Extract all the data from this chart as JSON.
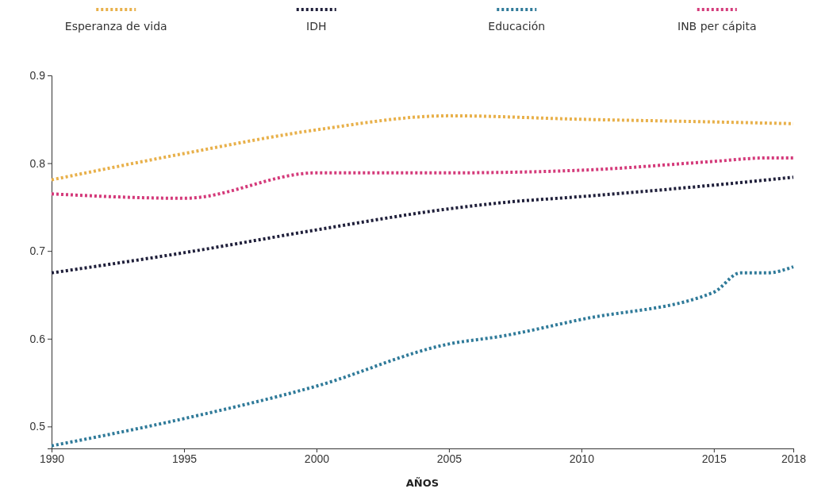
{
  "chart_data": {
    "type": "line",
    "xlabel": "AÑOS",
    "xlim": [
      1990,
      2018
    ],
    "xticks": [
      1990,
      1995,
      2000,
      2005,
      2010,
      2015,
      2018
    ],
    "ylim": [
      0.475,
      0.9
    ],
    "yticks": [
      0.5,
      0.6,
      0.7,
      0.8,
      0.9
    ],
    "grid": false,
    "legend": "top",
    "line_style": "dotted",
    "marker": "none",
    "series": [
      {
        "name": "Esperanza de vida",
        "color": "#e8b04a",
        "x": [
          1990,
          1995,
          2000,
          2005,
          2010,
          2015,
          2018
        ],
        "values": [
          0.781,
          0.811,
          0.838,
          0.854,
          0.85,
          0.847,
          0.845
        ]
      },
      {
        "name": "IDH",
        "color": "#1f1f3a",
        "x": [
          1990,
          1995,
          2000,
          2005,
          2007,
          2010,
          2015,
          2018
        ],
        "values": [
          0.675,
          0.698,
          0.724,
          0.748,
          0.755,
          0.762,
          0.775,
          0.784
        ]
      },
      {
        "name": "Educación",
        "color": "#2f7a99",
        "x": [
          1990,
          1995,
          2000,
          2005,
          2007,
          2010,
          2015,
          2016,
          2017,
          2018
        ],
        "values": [
          0.478,
          0.509,
          0.546,
          0.594,
          0.603,
          0.622,
          0.653,
          0.675,
          0.675,
          0.682
        ]
      },
      {
        "name": "INB per cápita",
        "color": "#d43a7a",
        "x": [
          1990,
          1995,
          2000,
          2005,
          2010,
          2015,
          2017,
          2018
        ],
        "values": [
          0.765,
          0.76,
          0.789,
          0.789,
          0.792,
          0.802,
          0.806,
          0.806
        ]
      }
    ]
  }
}
